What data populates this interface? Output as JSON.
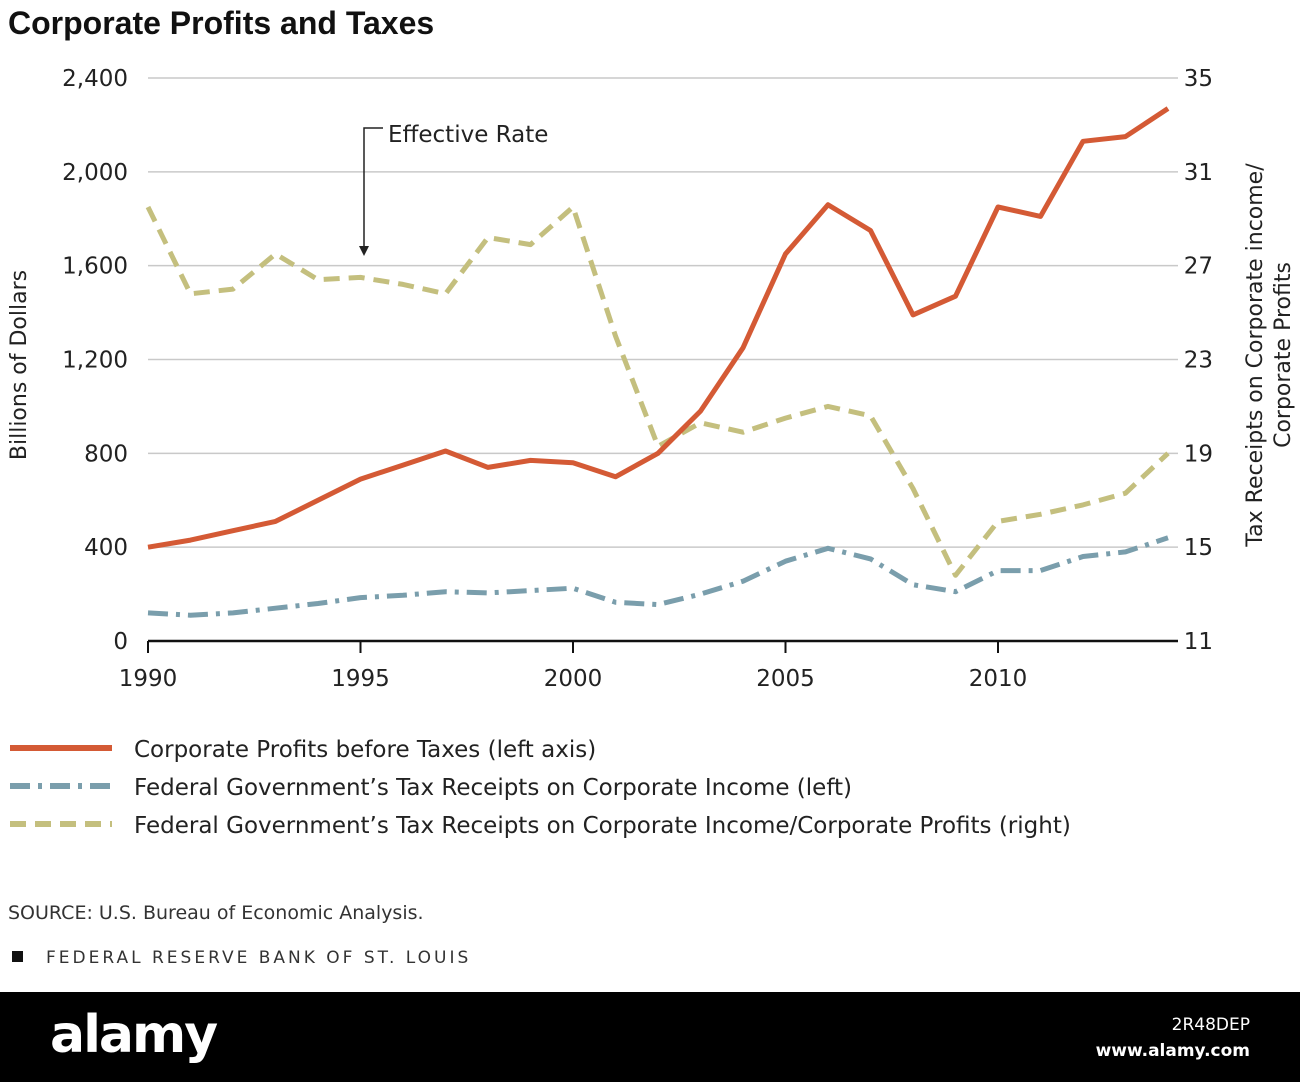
{
  "chart_data": {
    "type": "line",
    "title": "Corporate Profits and Taxes",
    "ylabel_left": "Billions of Dollars",
    "ylabel_right_lines": [
      "Tax Receipts on Corporate income/",
      "Corporate Profits"
    ],
    "ylim_left": [
      0,
      2400
    ],
    "ylim_right": [
      11,
      35
    ],
    "xlim": [
      1990,
      2014
    ],
    "yticks_left": [
      "0",
      "400",
      "800",
      "1,200",
      "1,600",
      "2,000",
      "2,400"
    ],
    "yticks_right": [
      "11",
      "15",
      "19",
      "23",
      "27",
      "31",
      "35"
    ],
    "xticks": [
      "1990",
      "1995",
      "2000",
      "2005",
      "2010"
    ],
    "grid": "horizontal",
    "legend_position": "bottom",
    "annotation": "Effective Rate",
    "series": [
      {
        "name": "Corporate Profits before Taxes (left axis)",
        "axis": "left",
        "color": "#d45a35",
        "style": "solid",
        "x": [
          1990,
          1991,
          1992,
          1993,
          1994,
          1995,
          1996,
          1997,
          1998,
          1999,
          2000,
          2001,
          2002,
          2003,
          2004,
          2005,
          2006,
          2007,
          2008,
          2009,
          2010,
          2011,
          2012,
          2013,
          2014
        ],
        "values": [
          400,
          430,
          470,
          510,
          600,
          690,
          750,
          810,
          740,
          770,
          760,
          700,
          800,
          980,
          1250,
          1650,
          1860,
          1750,
          1390,
          1470,
          1850,
          1810,
          2130,
          2150,
          2270
        ]
      },
      {
        "name": "Federal Government’s Tax Receipts on Corporate Income (left)",
        "axis": "left",
        "color": "#7a9eac",
        "style": "dash-dot",
        "x": [
          1990,
          1991,
          1992,
          1993,
          1994,
          1995,
          1996,
          1997,
          1998,
          1999,
          2000,
          2001,
          2002,
          2003,
          2004,
          2005,
          2006,
          2007,
          2008,
          2009,
          2010,
          2011,
          2012,
          2013,
          2014
        ],
        "values": [
          120,
          110,
          120,
          140,
          160,
          185,
          195,
          210,
          205,
          215,
          225,
          165,
          155,
          200,
          255,
          340,
          395,
          350,
          240,
          210,
          300,
          300,
          360,
          380,
          440
        ]
      },
      {
        "name": "Federal Government’s Tax Receipts on Corporate Income/Corporate Profits (right)",
        "axis": "right",
        "color": "#c4bf7e",
        "style": "dashed",
        "x": [
          1990,
          1991,
          1992,
          1993,
          1994,
          1995,
          1996,
          1997,
          1998,
          1999,
          2000,
          2001,
          2002,
          2003,
          2004,
          2005,
          2006,
          2007,
          2008,
          2009,
          2010,
          2011,
          2012,
          2013,
          2014
        ],
        "values": [
          29.5,
          25.8,
          26.0,
          27.5,
          26.4,
          26.5,
          26.2,
          25.8,
          28.2,
          27.9,
          29.5,
          24.0,
          19.3,
          20.3,
          19.9,
          20.5,
          21.0,
          20.6,
          17.5,
          13.8,
          16.1,
          16.4,
          16.8,
          17.3,
          19.0
        ]
      }
    ],
    "source": "SOURCE: U.S. Bureau of Economic Analysis.",
    "organization": "FEDERAL RESERVE BANK OF ST. LOUIS"
  },
  "watermark": {
    "logo": "alamy",
    "image_id": "2R48DEP",
    "url": "www.alamy.com"
  }
}
